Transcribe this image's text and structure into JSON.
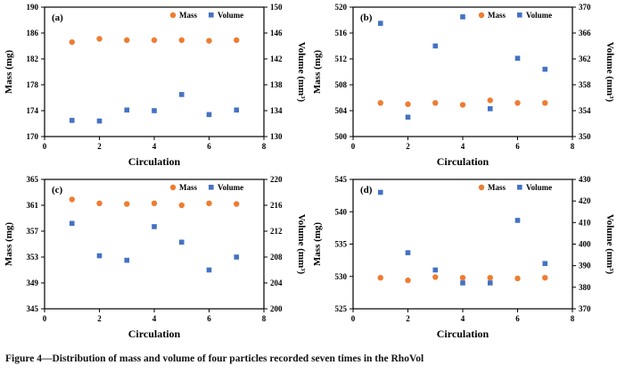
{
  "figure_caption": "Figure 4—Distribution of mass and volume of four particles recorded seven times in the RhoVol",
  "legend": {
    "mass": "Mass",
    "volume": "Volume"
  },
  "colors": {
    "mass": "#ED7D31",
    "volume": "#4472C4",
    "axis": "#000000",
    "text": "#000000"
  },
  "chart_data": [
    {
      "type": "scatter",
      "panel": "(a)",
      "xlabel": "Circulation",
      "ylabel_left": "Mass (mg)",
      "ylabel_right": "Volume (mm³)",
      "xlim": [
        0,
        8
      ],
      "xticks": [
        0,
        2,
        4,
        6,
        8
      ],
      "ylim_left": [
        170,
        190
      ],
      "yticks_left": [
        170,
        174,
        178,
        182,
        186,
        190
      ],
      "ylim_right": [
        130,
        150
      ],
      "yticks_right": [
        130,
        134,
        138,
        142,
        146,
        150
      ],
      "x": [
        1,
        2,
        3,
        4,
        5,
        6,
        7
      ],
      "series": [
        {
          "name": "Mass",
          "axis": "left",
          "marker": "circle",
          "values": [
            184.6,
            185.1,
            184.9,
            184.9,
            184.9,
            184.8,
            184.9
          ]
        },
        {
          "name": "Volume",
          "axis": "right",
          "marker": "square",
          "values": [
            132.5,
            132.4,
            134.1,
            134.0,
            136.5,
            133.4,
            134.1
          ]
        }
      ]
    },
    {
      "type": "scatter",
      "panel": "(b)",
      "xlabel": "Circulation",
      "ylabel_left": "Mass (mg)",
      "ylabel_right": "Volume (mm³)",
      "xlim": [
        0,
        8
      ],
      "xticks": [
        0,
        2,
        4,
        6,
        8
      ],
      "ylim_left": [
        500,
        520
      ],
      "yticks_left": [
        500,
        504,
        508,
        512,
        516,
        520
      ],
      "ylim_right": [
        350,
        370
      ],
      "yticks_right": [
        350,
        354,
        358,
        362,
        366,
        370
      ],
      "x": [
        1,
        2,
        3,
        4,
        5,
        6,
        7
      ],
      "series": [
        {
          "name": "Mass",
          "axis": "left",
          "marker": "circle",
          "values": [
            505.2,
            505.0,
            505.2,
            504.9,
            505.6,
            505.2,
            505.2
          ]
        },
        {
          "name": "Volume",
          "axis": "right",
          "marker": "square",
          "values": [
            367.5,
            353.0,
            364.0,
            368.5,
            354.3,
            362.1,
            360.4
          ]
        }
      ]
    },
    {
      "type": "scatter",
      "panel": "(c)",
      "xlabel": "Circulation",
      "ylabel_left": "Mass (mg)",
      "ylabel_right": "Volume (mm³)",
      "xlim": [
        0,
        8
      ],
      "xticks": [
        0,
        2,
        4,
        6,
        8
      ],
      "ylim_left": [
        345,
        365
      ],
      "yticks_left": [
        345,
        349,
        353,
        357,
        361,
        365
      ],
      "ylim_right": [
        200,
        220
      ],
      "yticks_right": [
        200,
        204,
        208,
        212,
        216,
        220
      ],
      "x": [
        1,
        2,
        3,
        4,
        5,
        6,
        7
      ],
      "series": [
        {
          "name": "Mass",
          "axis": "left",
          "marker": "circle",
          "values": [
            361.9,
            361.3,
            361.2,
            361.3,
            361.0,
            361.3,
            361.2
          ]
        },
        {
          "name": "Volume",
          "axis": "right",
          "marker": "square",
          "values": [
            213.2,
            208.2,
            207.5,
            212.7,
            210.3,
            206.0,
            208.0
          ]
        }
      ]
    },
    {
      "type": "scatter",
      "panel": "(d)",
      "xlabel": "Circulation",
      "ylabel_left": "Mass (mg)",
      "ylabel_right": "Volume (mm³)",
      "xlim": [
        0,
        8
      ],
      "xticks": [
        0,
        2,
        4,
        6,
        8
      ],
      "ylim_left": [
        525,
        545
      ],
      "yticks_left": [
        525,
        530,
        535,
        540,
        545
      ],
      "ylim_right": [
        370,
        430
      ],
      "yticks_right": [
        370,
        380,
        390,
        400,
        410,
        420,
        430
      ],
      "x": [
        1,
        2,
        3,
        4,
        5,
        6,
        7
      ],
      "series": [
        {
          "name": "Mass",
          "axis": "left",
          "marker": "circle",
          "values": [
            529.8,
            529.4,
            529.9,
            529.8,
            529.8,
            529.7,
            529.8
          ]
        },
        {
          "name": "Volume",
          "axis": "right",
          "marker": "square",
          "values": [
            424.0,
            396.0,
            388.0,
            382.0,
            382.0,
            411.0,
            391.0
          ]
        }
      ]
    }
  ]
}
